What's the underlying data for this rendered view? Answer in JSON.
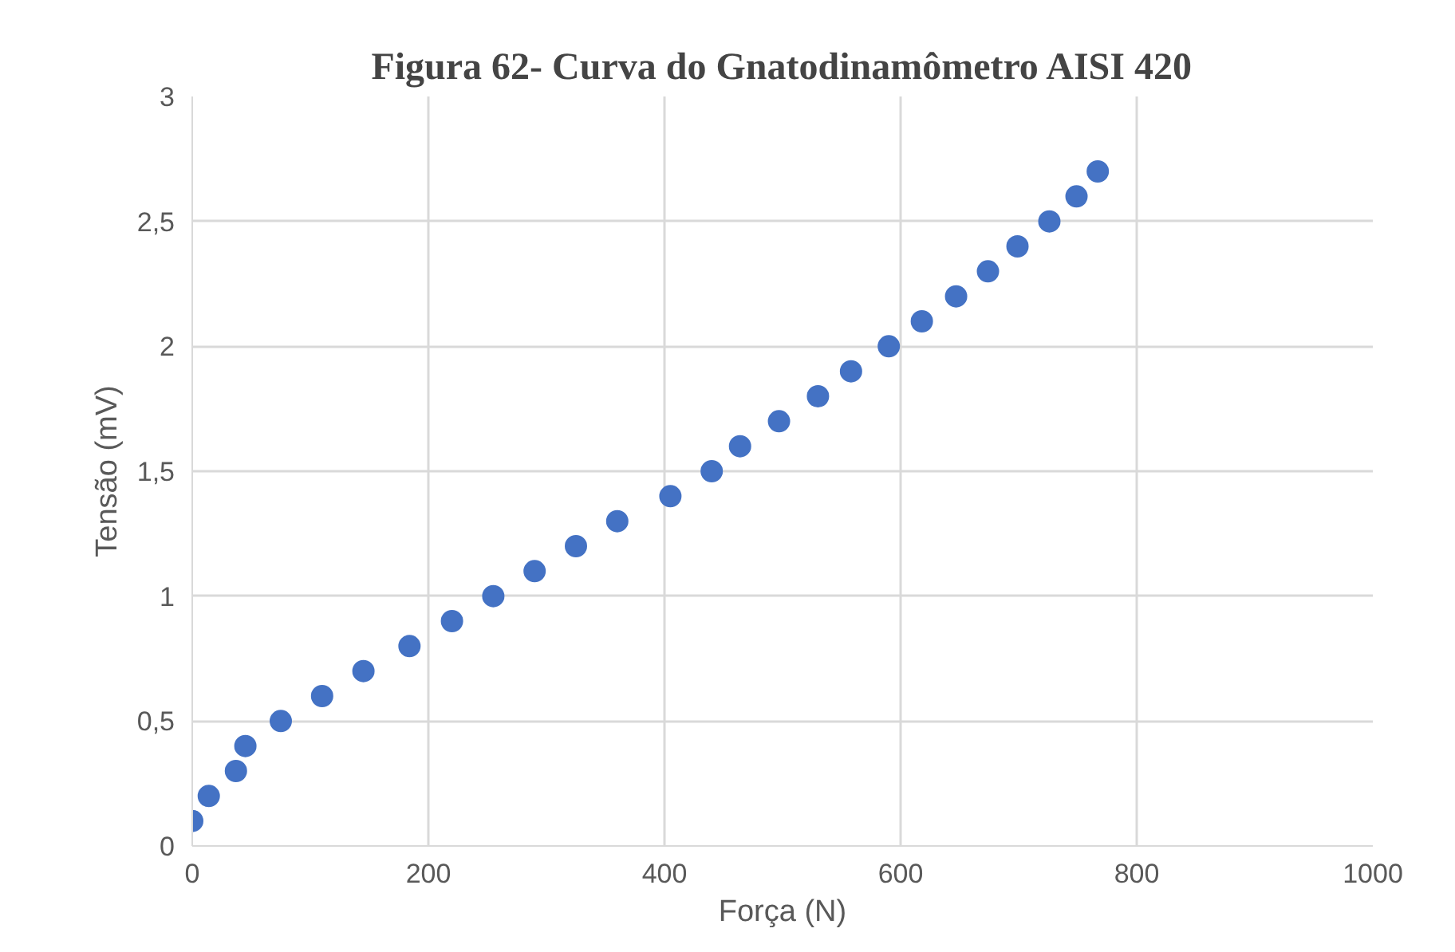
{
  "chart_data": {
    "type": "scatter",
    "title": "Figura 62- Curva do Gnatodinamômetro AISI 420",
    "xlabel": "Força (N)",
    "ylabel": "Tensão (mV)",
    "x": [
      0,
      14,
      37,
      45,
      75,
      110,
      145,
      184,
      220,
      255,
      290,
      325,
      360,
      405,
      440,
      464,
      497,
      530,
      558,
      590,
      618,
      647,
      674,
      699,
      726,
      749,
      767
    ],
    "series": [
      {
        "color": "#4472c4",
        "values": [
          0.1,
          0.2,
          0.3,
          0.4,
          0.5,
          0.6,
          0.7,
          0.8,
          0.9,
          1.0,
          1.1,
          1.2,
          1.3,
          1.4,
          1.5,
          1.6,
          1.7,
          1.8,
          1.9,
          2.0,
          2.1,
          2.2,
          2.3,
          2.4,
          2.5,
          2.6,
          2.7
        ]
      }
    ],
    "xlim": [
      0,
      1000
    ],
    "xticks": [
      0,
      200,
      400,
      600,
      800,
      1000
    ],
    "ylim": [
      0,
      3
    ],
    "yticks": [
      0,
      {
        "value": 0.5,
        "label": "0,5"
      },
      1,
      {
        "value": 1.5,
        "label": "1,5"
      },
      2,
      {
        "value": 2.5,
        "label": "2,5"
      },
      3
    ],
    "grid": true,
    "marker": "circle"
  }
}
